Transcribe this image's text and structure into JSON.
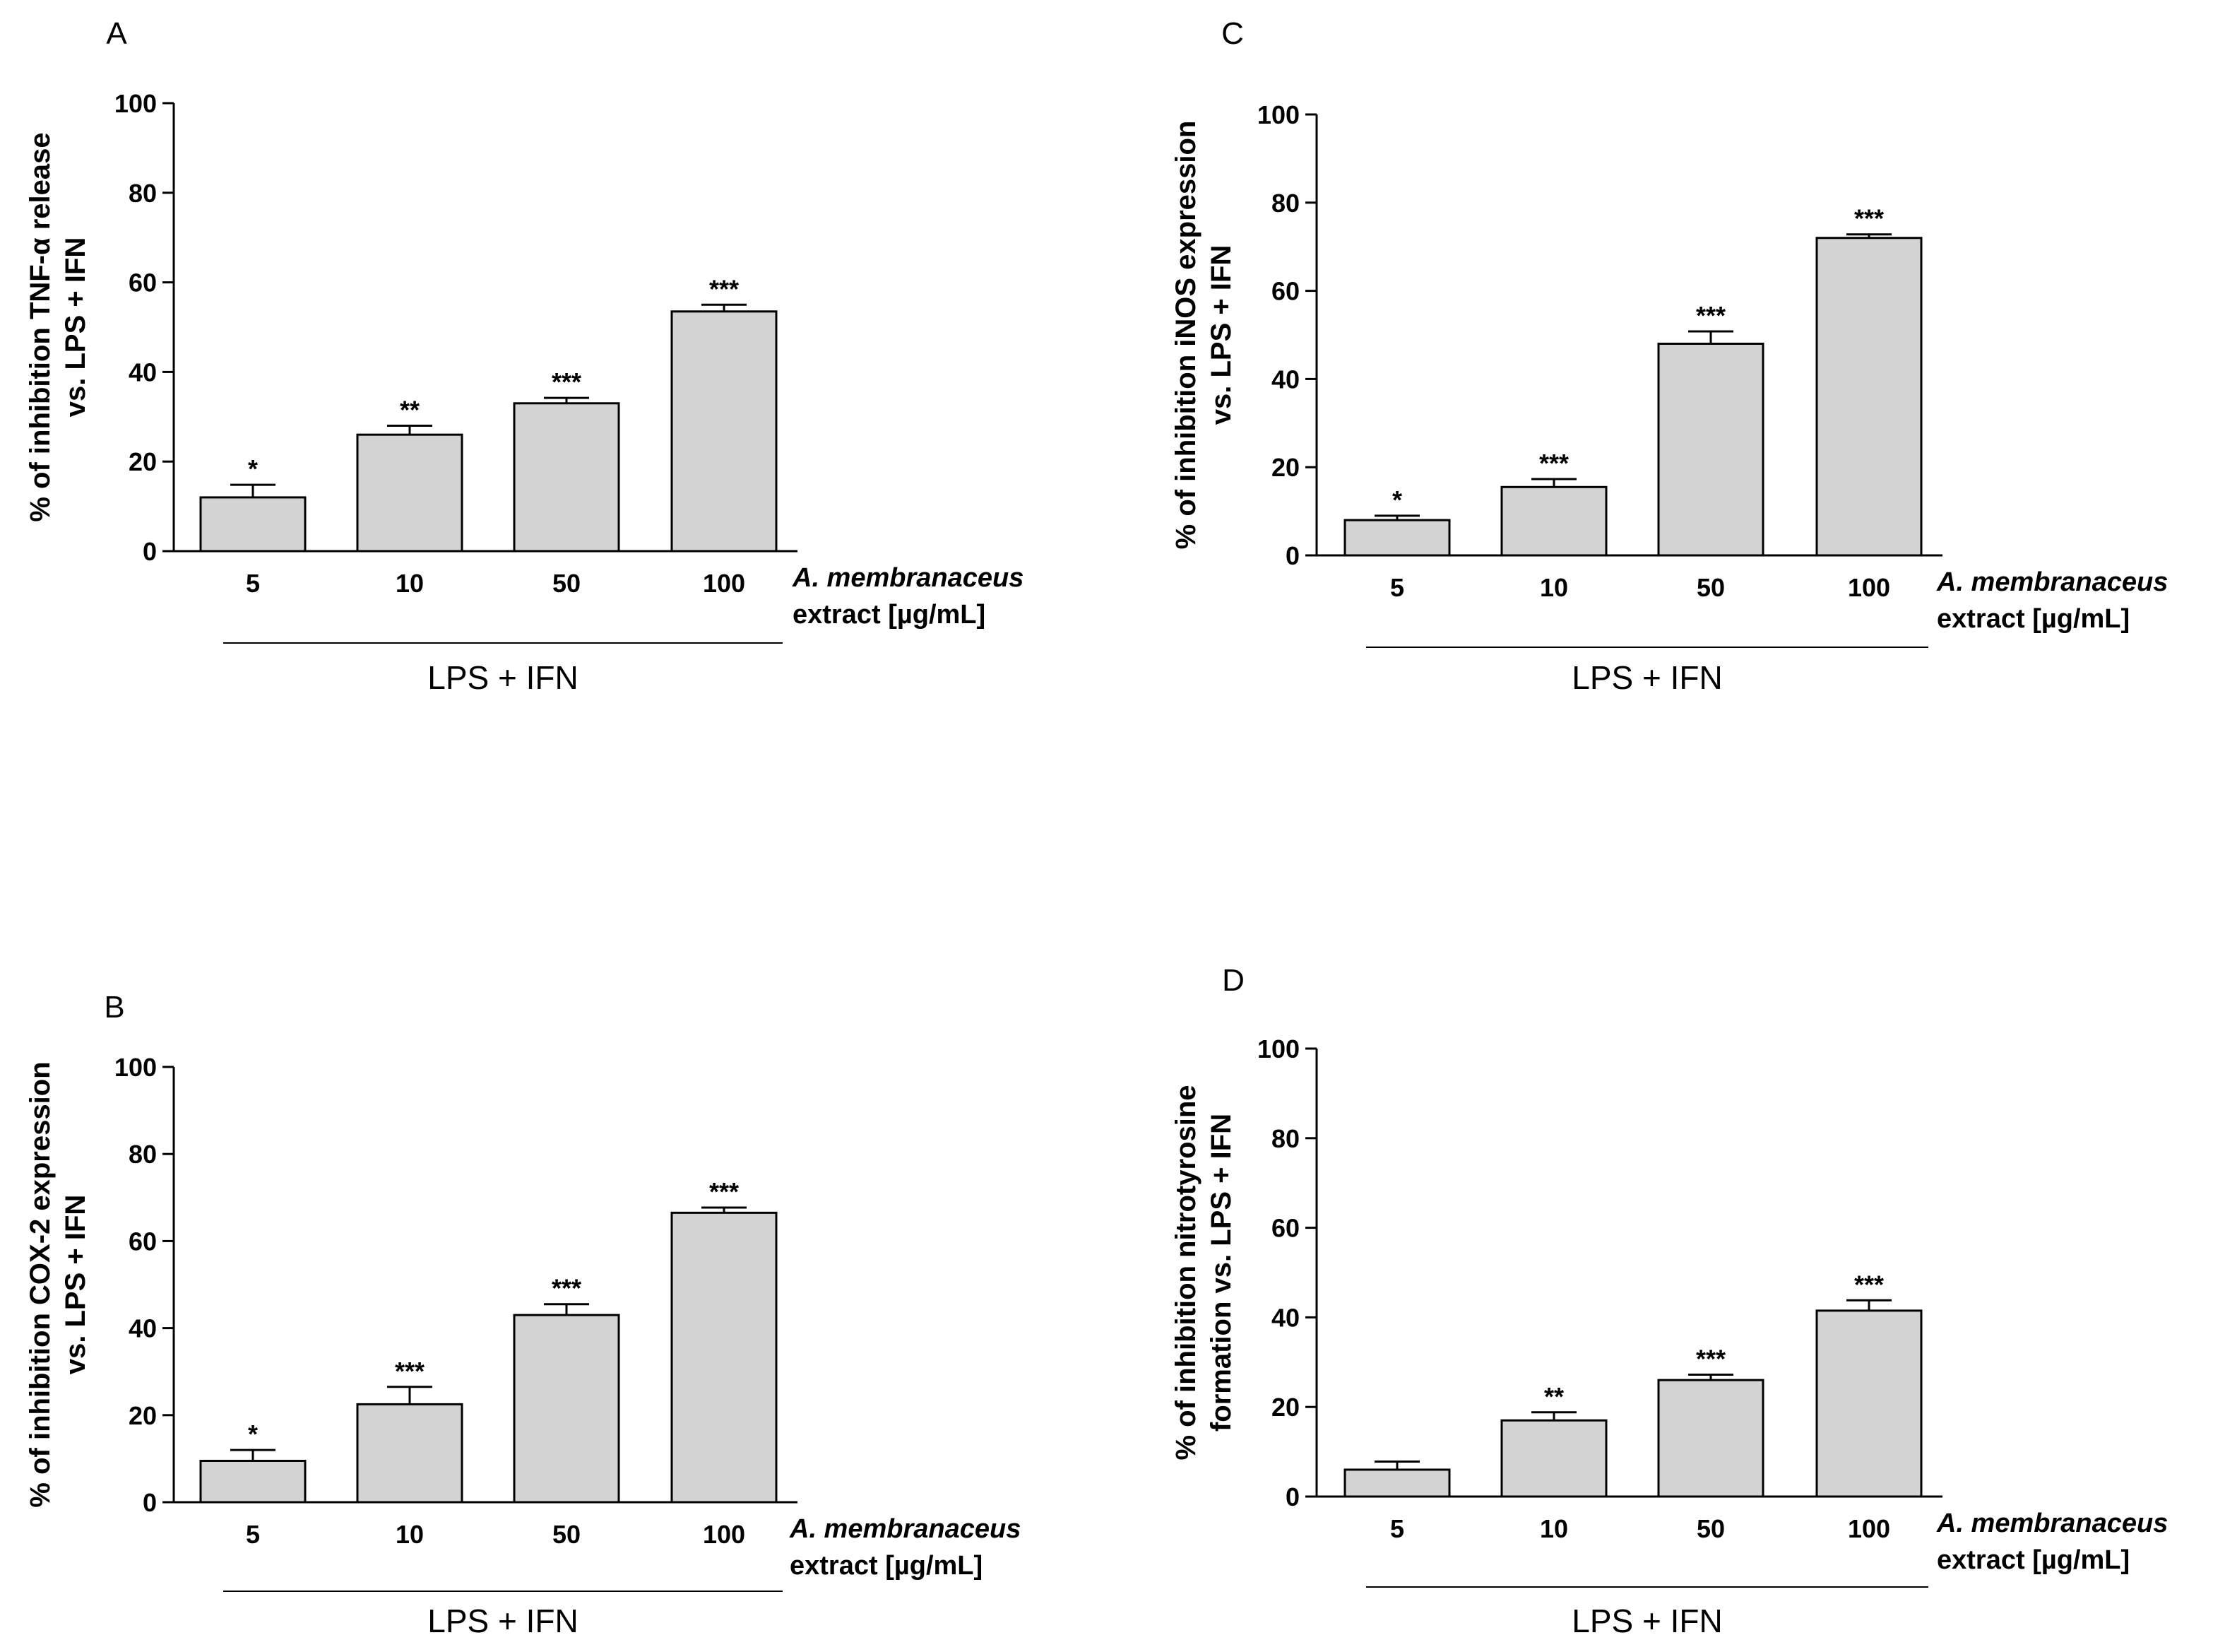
{
  "chart_data": [
    {
      "panel": "A",
      "type": "bar",
      "title": "",
      "ylabel_lines": [
        "% of inhibition TNF-α release",
        "vs. LPS + IFN"
      ],
      "xlabel_lines": [
        "A. membranaceus",
        "extract [µg/mL]"
      ],
      "group_label": "LPS + IFN",
      "categories": [
        "5",
        "10",
        "50",
        "100"
      ],
      "values": [
        12,
        26,
        33,
        53.5
      ],
      "errors": [
        2.8,
        2.0,
        1.2,
        1.5
      ],
      "significance": [
        "*",
        "**",
        "***",
        "***"
      ],
      "ylim": [
        0,
        100
      ],
      "yticks": [
        "0",
        "20",
        "40",
        "60",
        "80",
        "100"
      ],
      "bar_color": "#d3d3d3"
    },
    {
      "panel": "C",
      "type": "bar",
      "title": "",
      "ylabel_lines": [
        "% of inhibition iNOS expression",
        "vs. LPS + IFN"
      ],
      "xlabel_lines": [
        "A. membranaceus",
        "extract [µg/mL]"
      ],
      "group_label": "LPS + IFN",
      "categories": [
        "5",
        "10",
        "50",
        "100"
      ],
      "values": [
        8,
        15.5,
        48,
        72
      ],
      "errors": [
        1.0,
        1.8,
        2.8,
        0.8
      ],
      "significance": [
        "*",
        "***",
        "***",
        "***"
      ],
      "ylim": [
        0,
        100
      ],
      "yticks": [
        "0",
        "20",
        "40",
        "60",
        "80",
        "100"
      ],
      "bar_color": "#d3d3d3"
    },
    {
      "panel": "B",
      "type": "bar",
      "title": "",
      "ylabel_lines": [
        "% of inhibition COX-2 expression",
        "vs. LPS + IFN"
      ],
      "xlabel_lines": [
        "A. membranaceus",
        "extract [µg/mL]"
      ],
      "group_label": "LPS + IFN",
      "categories": [
        "5",
        "10",
        "50",
        "100"
      ],
      "values": [
        9.5,
        22.5,
        43,
        66.5
      ],
      "errors": [
        2.5,
        4.0,
        2.5,
        1.2
      ],
      "significance": [
        "*",
        "***",
        "***",
        "***"
      ],
      "ylim": [
        0,
        100
      ],
      "yticks": [
        "0",
        "20",
        "40",
        "60",
        "80",
        "100"
      ],
      "bar_color": "#d3d3d3"
    },
    {
      "panel": "D",
      "type": "bar",
      "title": "",
      "ylabel_lines": [
        "% of inhibition nitrotyrosine",
        "formation vs. LPS + IFN"
      ],
      "xlabel_lines": [
        "A. membranaceus",
        "extract [µg/mL]"
      ],
      "group_label": "LPS + IFN",
      "categories": [
        "5",
        "10",
        "50",
        "100"
      ],
      "values": [
        6,
        17,
        26,
        41.5
      ],
      "errors": [
        1.8,
        1.8,
        1.2,
        2.3
      ],
      "significance": [
        "",
        "**",
        "***",
        "***"
      ],
      "ylim": [
        0,
        100
      ],
      "yticks": [
        "0",
        "20",
        "40",
        "60",
        "80",
        "100"
      ],
      "bar_color": "#d3d3d3"
    }
  ]
}
